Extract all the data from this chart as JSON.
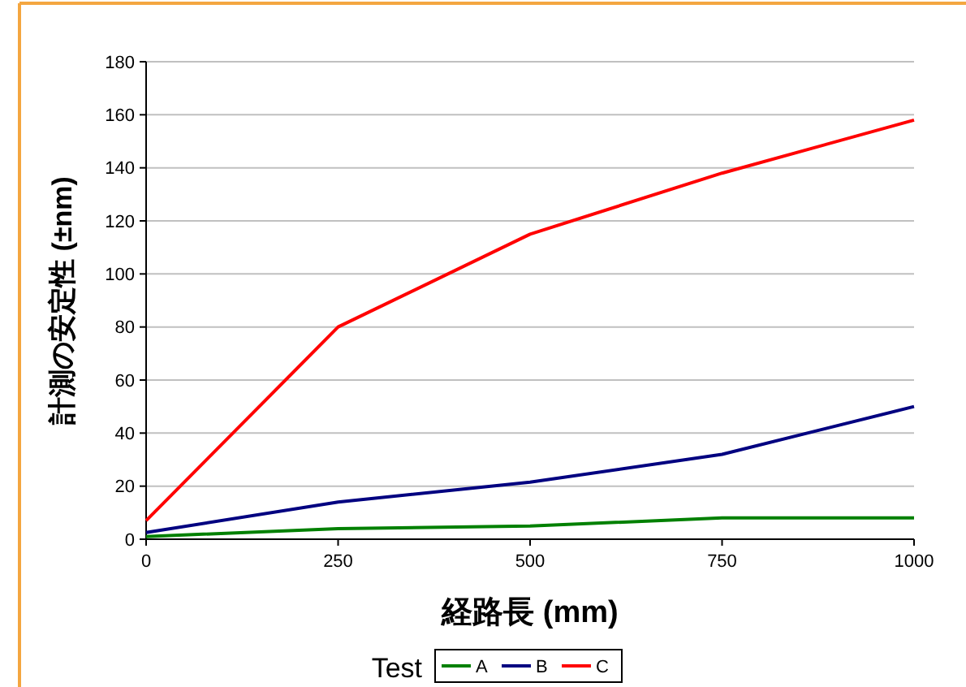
{
  "chart_data": {
    "type": "line",
    "xlabel": "経路長 (mm)",
    "ylabel": "計測の安定性 (±nm)",
    "legend_title": "Test",
    "x": [
      0,
      250,
      500,
      750,
      1000
    ],
    "series": [
      {
        "name": "A",
        "color": "#008000",
        "values": [
          1,
          4,
          5,
          8,
          8
        ]
      },
      {
        "name": "B",
        "color": "#000080",
        "values": [
          2.5,
          14,
          21.5,
          32,
          50
        ]
      },
      {
        "name": "C",
        "color": "#ff0000",
        "values": [
          7,
          80,
          115,
          138,
          158
        ]
      }
    ],
    "xlim": [
      0,
      1000
    ],
    "xticks": [
      0,
      250,
      500,
      750,
      1000
    ],
    "ylim": [
      0,
      180
    ],
    "yticks": [
      0,
      20,
      40,
      60,
      80,
      100,
      120,
      140,
      160,
      180
    ],
    "grid": "y",
    "legend": "bottom",
    "marker": "none",
    "line_style": "solid"
  }
}
